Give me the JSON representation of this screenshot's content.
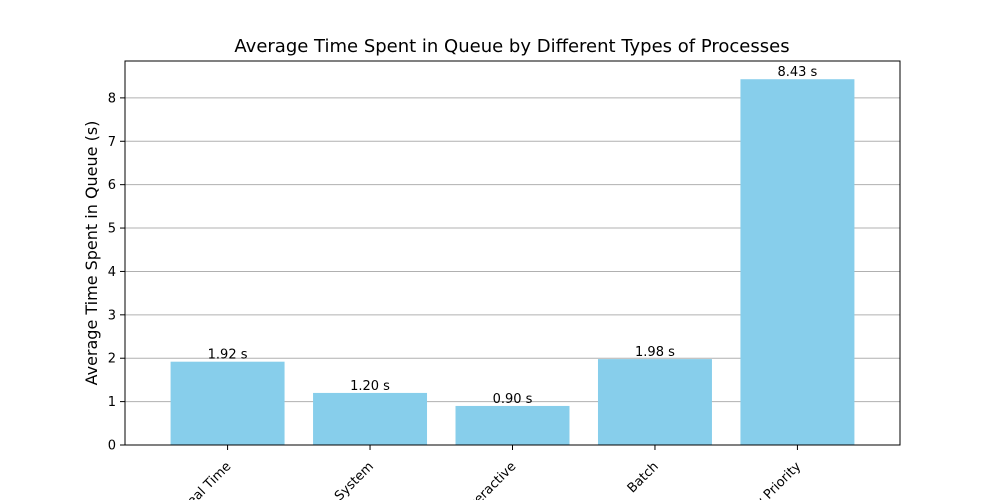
{
  "chart_data": {
    "type": "bar",
    "title": "Average Time Spent in Queue by Different Types of Processes",
    "xlabel": "",
    "ylabel": "Average Time Spent in Queue (s)",
    "categories": [
      "Real Time",
      "System",
      "Interactive",
      "Batch",
      "Low Priority"
    ],
    "values": [
      1.92,
      1.2,
      0.9,
      1.98,
      8.43
    ],
    "data_labels": [
      "1.92 s",
      "1.20 s",
      "0.90 s",
      "1.98 s",
      "8.43 s"
    ],
    "ylim": [
      0,
      8.85
    ],
    "yticks": [
      0,
      1,
      2,
      3,
      4,
      5,
      6,
      7,
      8
    ],
    "grid": "y",
    "bar_color": "#87CEEB",
    "xtick_rotation_deg": 45
  }
}
